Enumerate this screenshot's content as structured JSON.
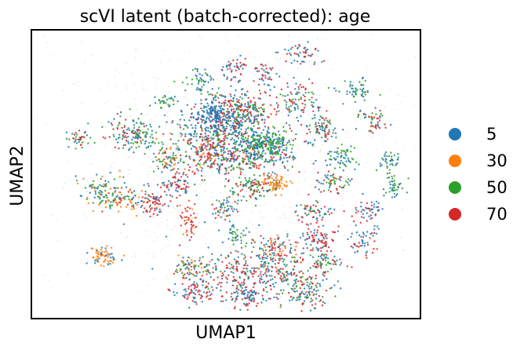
{
  "chart_data": {
    "type": "scatter",
    "title": "scVI latent (batch-corrected): age",
    "xlabel": "UMAP1",
    "ylabel": "UMAP2",
    "xticks": [],
    "yticks": [],
    "grid": false,
    "legend_placement": "right",
    "series": [
      {
        "name": "5",
        "color": "#1f77b4"
      },
      {
        "name": "30",
        "color": "#ff7f0e"
      },
      {
        "name": "50",
        "color": "#2ca02c"
      },
      {
        "name": "70",
        "color": "#d62728"
      }
    ],
    "point_density": "high",
    "dominant_series_order": [
      "5",
      "70",
      "50",
      "30"
    ]
  }
}
